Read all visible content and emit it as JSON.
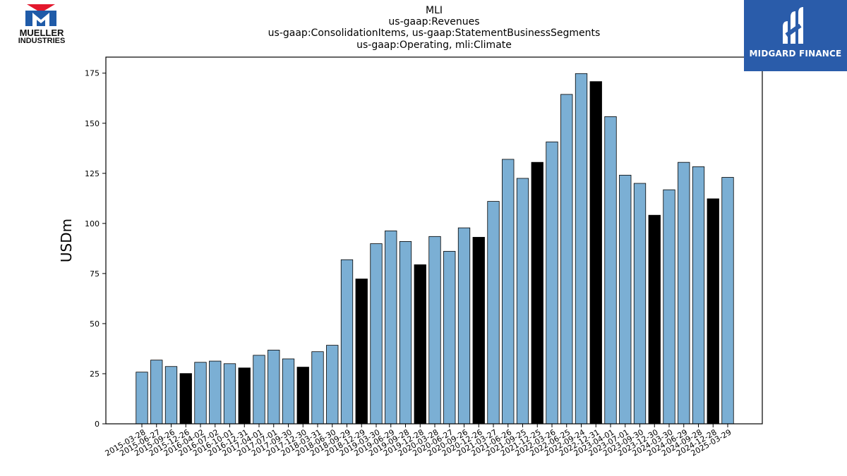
{
  "header": {
    "title_lines": [
      "MLI",
      "us-gaap:Revenues",
      "us-gaap:ConsolidationItems, us-gaap:StatementBusinessSegments",
      "us-gaap:Operating, mli:Climate"
    ]
  },
  "logos": {
    "left": {
      "line1": "MUELLER",
      "line2": "INDUSTRIES",
      "red": "#e3182d",
      "blue": "#1f5ba8"
    },
    "right": {
      "text": "MIDGARD FINANCE",
      "bg": "#2a5caa"
    }
  },
  "chart_data": {
    "type": "bar",
    "title": "",
    "xlabel": "",
    "ylabel": "USDm",
    "ylim": [
      0,
      183
    ],
    "yticks": [
      0,
      25,
      50,
      75,
      100,
      125,
      150,
      175
    ],
    "grid": false,
    "legend": "none",
    "colors": {
      "quarter": "#7bafd4",
      "year_end": "#000000"
    },
    "categories": [
      "2015-03-28",
      "2015-06-27",
      "2015-09-26",
      "2015-12-26",
      "2016-04-02",
      "2016-07-02",
      "2016-10-01",
      "2016-12-31",
      "2017-04-01",
      "2017-07-01",
      "2017-09-30",
      "2017-12-30",
      "2018-03-31",
      "2018-06-30",
      "2018-09-29",
      "2018-12-29",
      "2019-03-30",
      "2019-06-29",
      "2019-09-28",
      "2019-12-28",
      "2020-03-28",
      "2020-06-27",
      "2020-09-26",
      "2020-12-26",
      "2021-03-27",
      "2021-06-26",
      "2021-09-25",
      "2021-12-25",
      "2022-03-26",
      "2022-06-25",
      "2022-09-24",
      "2022-12-31",
      "2023-04-01",
      "2023-07-01",
      "2023-09-30",
      "2023-12-30",
      "2024-03-30",
      "2024-06-29",
      "2024-09-28",
      "2024-12-28",
      "2025-03-29"
    ],
    "values": [
      25.8,
      31.8,
      28.6,
      25.1,
      30.7,
      31.3,
      30.0,
      27.9,
      34.2,
      36.8,
      32.4,
      28.3,
      36.0,
      39.2,
      81.9,
      72.3,
      89.9,
      96.3,
      91.0,
      79.4,
      93.5,
      86.1,
      97.8,
      93.1,
      111.0,
      132.0,
      122.5,
      130.5,
      140.7,
      164.4,
      174.8,
      170.8,
      153.3,
      124.1,
      120.0,
      104.1,
      116.8,
      130.5,
      128.3,
      112.3,
      123.0
    ],
    "year_end_flags": [
      0,
      0,
      0,
      1,
      0,
      0,
      0,
      1,
      0,
      0,
      0,
      1,
      0,
      0,
      0,
      1,
      0,
      0,
      0,
      1,
      0,
      0,
      0,
      1,
      0,
      0,
      0,
      1,
      0,
      0,
      0,
      1,
      0,
      0,
      0,
      1,
      0,
      0,
      0,
      1,
      0
    ]
  }
}
